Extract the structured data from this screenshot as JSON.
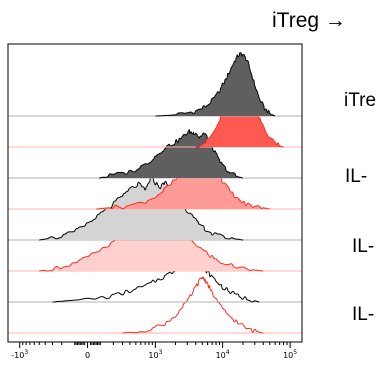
{
  "header": {
    "text": "iTreg →"
  },
  "row_labels": [
    "iTre",
    "IL-",
    "IL-",
    "IL-"
  ],
  "colors": {
    "dark_fill": "#5f5f5f",
    "medium_fill": "#a6a6a6",
    "light_fill": "#d4d4d4",
    "red_dark_fill": "#ff5a52",
    "red_medium_fill": "#ff9b96",
    "red_light_fill": "#ffd0ce",
    "black_line": "#000000",
    "red_line": "#ff2a1f",
    "baseline": "#b0b0b0",
    "red_baseline": "#ffb3ae"
  },
  "chart_data": {
    "type": "area",
    "subtype": "staggered histogram (flow cytometry)",
    "x_scale": "biexponential",
    "xlim": [
      -1500,
      150000
    ],
    "x_ticks": [
      -1000,
      0,
      1000,
      10000,
      100000
    ],
    "x_tick_labels": [
      {
        "base": "-10",
        "exp": "3"
      },
      {
        "base": "0",
        "exp": ""
      },
      {
        "base": "10",
        "exp": "3"
      },
      {
        "base": "10",
        "exp": "4"
      },
      {
        "base": "10",
        "exp": "5"
      }
    ],
    "grid": false,
    "legend": "none",
    "series": [
      {
        "color": "black",
        "fill": "dark",
        "peak_x": 18000,
        "peak_height": 1.0,
        "points": [
          [
            1000,
            0.0
          ],
          [
            2000,
            0.02
          ],
          [
            3000,
            0.05
          ],
          [
            4500,
            0.1
          ],
          [
            6000,
            0.18
          ],
          [
            8000,
            0.32
          ],
          [
            10000,
            0.5
          ],
          [
            12000,
            0.66
          ],
          [
            14000,
            0.82
          ],
          [
            16000,
            0.94
          ],
          [
            18000,
            1.0
          ],
          [
            20000,
            0.99
          ],
          [
            23000,
            0.9
          ],
          [
            26000,
            0.72
          ],
          [
            30000,
            0.5
          ],
          [
            35000,
            0.28
          ],
          [
            42000,
            0.12
          ],
          [
            50000,
            0.04
          ],
          [
            60000,
            0.0
          ]
        ]
      },
      {
        "color": "red",
        "fill": "red_dark",
        "peak_x": 20000,
        "peak_height": 1.0,
        "points": [
          [
            4000,
            0.0
          ],
          [
            6000,
            0.1
          ],
          [
            8000,
            0.3
          ],
          [
            10000,
            0.55
          ],
          [
            12000,
            0.72
          ],
          [
            14000,
            0.8
          ],
          [
            17000,
            0.9
          ],
          [
            20000,
            1.0
          ],
          [
            22000,
            0.95
          ],
          [
            25000,
            0.82
          ],
          [
            28000,
            0.72
          ],
          [
            32000,
            0.55
          ],
          [
            37000,
            0.4
          ],
          [
            45000,
            0.22
          ],
          [
            55000,
            0.1
          ],
          [
            70000,
            0.02
          ],
          [
            80000,
            0.0
          ]
        ]
      },
      {
        "color": "black",
        "fill": "dark",
        "peak_x": 3500,
        "peak_height": 0.75,
        "points": [
          [
            80,
            0.0
          ],
          [
            200,
            0.05
          ],
          [
            400,
            0.1
          ],
          [
            700,
            0.22
          ],
          [
            1000,
            0.35
          ],
          [
            1400,
            0.5
          ],
          [
            1800,
            0.55
          ],
          [
            2300,
            0.62
          ],
          [
            2800,
            0.7
          ],
          [
            3200,
            0.75
          ],
          [
            3600,
            0.72
          ],
          [
            4000,
            0.74
          ],
          [
            4500,
            0.65
          ],
          [
            5200,
            0.72
          ],
          [
            6000,
            0.66
          ],
          [
            7000,
            0.5
          ],
          [
            8500,
            0.32
          ],
          [
            10000,
            0.2
          ],
          [
            13000,
            0.08
          ],
          [
            17000,
            0.02
          ],
          [
            20000,
            0.0
          ]
        ]
      },
      {
        "color": "red",
        "fill": "red_medium",
        "peak_x": 5000,
        "peak_height": 0.9,
        "points": [
          [
            60,
            0.0
          ],
          [
            150,
            0.02
          ],
          [
            300,
            0.04
          ],
          [
            600,
            0.1
          ],
          [
            1000,
            0.2
          ],
          [
            1500,
            0.35
          ],
          [
            2200,
            0.52
          ],
          [
            3000,
            0.68
          ],
          [
            3800,
            0.8
          ],
          [
            4500,
            0.88
          ],
          [
            5000,
            0.9
          ],
          [
            5600,
            0.86
          ],
          [
            6500,
            0.78
          ],
          [
            8000,
            0.6
          ],
          [
            10000,
            0.45
          ],
          [
            13000,
            0.28
          ],
          [
            17000,
            0.15
          ],
          [
            22000,
            0.08
          ],
          [
            30000,
            0.04
          ],
          [
            40000,
            0.02
          ],
          [
            50000,
            0.0
          ]
        ]
      },
      {
        "color": "black",
        "fill": "light",
        "peak_x": 800,
        "peak_height": 1.0,
        "points": [
          [
            -500,
            0.0
          ],
          [
            -250,
            0.04
          ],
          [
            -100,
            0.12
          ],
          [
            0,
            0.25
          ],
          [
            100,
            0.45
          ],
          [
            250,
            0.65
          ],
          [
            400,
            0.82
          ],
          [
            550,
            0.9
          ],
          [
            700,
            0.8
          ],
          [
            850,
            1.0
          ],
          [
            1000,
            0.92
          ],
          [
            1200,
            0.85
          ],
          [
            1400,
            0.95
          ],
          [
            1600,
            0.8
          ],
          [
            2000,
            0.7
          ],
          [
            2600,
            0.55
          ],
          [
            3300,
            0.42
          ],
          [
            4200,
            0.28
          ],
          [
            5500,
            0.18
          ],
          [
            7000,
            0.1
          ],
          [
            10000,
            0.05
          ],
          [
            15000,
            0.02
          ],
          [
            20000,
            0.0
          ]
        ]
      },
      {
        "color": "red",
        "fill": "red_light",
        "peak_x": 1000,
        "peak_height": 1.0,
        "points": [
          [
            -500,
            0.0
          ],
          [
            -250,
            0.05
          ],
          [
            -100,
            0.12
          ],
          [
            0,
            0.22
          ],
          [
            150,
            0.4
          ],
          [
            300,
            0.58
          ],
          [
            500,
            0.75
          ],
          [
            700,
            0.9
          ],
          [
            900,
            0.98
          ],
          [
            1100,
            1.0
          ],
          [
            1400,
            0.92
          ],
          [
            1800,
            0.82
          ],
          [
            2300,
            0.7
          ],
          [
            3000,
            0.56
          ],
          [
            3800,
            0.45
          ],
          [
            5000,
            0.34
          ],
          [
            6500,
            0.25
          ],
          [
            8500,
            0.16
          ],
          [
            12000,
            0.1
          ],
          [
            18000,
            0.05
          ],
          [
            28000,
            0.02
          ],
          [
            40000,
            0.0
          ]
        ]
      },
      {
        "color": "black",
        "fill": "none",
        "peak_x": 3500,
        "peak_height": 0.72,
        "points": [
          [
            -300,
            0.0
          ],
          [
            0,
            0.04
          ],
          [
            200,
            0.1
          ],
          [
            400,
            0.18
          ],
          [
            700,
            0.26
          ],
          [
            1000,
            0.34
          ],
          [
            1400,
            0.42
          ],
          [
            1900,
            0.5
          ],
          [
            2500,
            0.6
          ],
          [
            3000,
            0.66
          ],
          [
            3500,
            0.72
          ],
          [
            4000,
            0.65
          ],
          [
            4800,
            0.6
          ],
          [
            5500,
            0.52
          ],
          [
            6500,
            0.44
          ],
          [
            8000,
            0.34
          ],
          [
            10000,
            0.24
          ],
          [
            13000,
            0.16
          ],
          [
            18000,
            0.08
          ],
          [
            25000,
            0.04
          ],
          [
            35000,
            0.0
          ]
        ]
      },
      {
        "color": "red",
        "fill": "none",
        "peak_x": 5000,
        "peak_height": 0.9,
        "points": [
          [
            300,
            0.0
          ],
          [
            700,
            0.05
          ],
          [
            1200,
            0.12
          ],
          [
            1800,
            0.24
          ],
          [
            2500,
            0.4
          ],
          [
            3300,
            0.58
          ],
          [
            4000,
            0.74
          ],
          [
            4600,
            0.85
          ],
          [
            5000,
            0.9
          ],
          [
            5500,
            0.86
          ],
          [
            6200,
            0.76
          ],
          [
            7000,
            0.64
          ],
          [
            8500,
            0.5
          ],
          [
            10000,
            0.38
          ],
          [
            13000,
            0.26
          ],
          [
            17000,
            0.16
          ],
          [
            22000,
            0.08
          ],
          [
            30000,
            0.03
          ],
          [
            40000,
            0.0
          ]
        ]
      }
    ]
  }
}
